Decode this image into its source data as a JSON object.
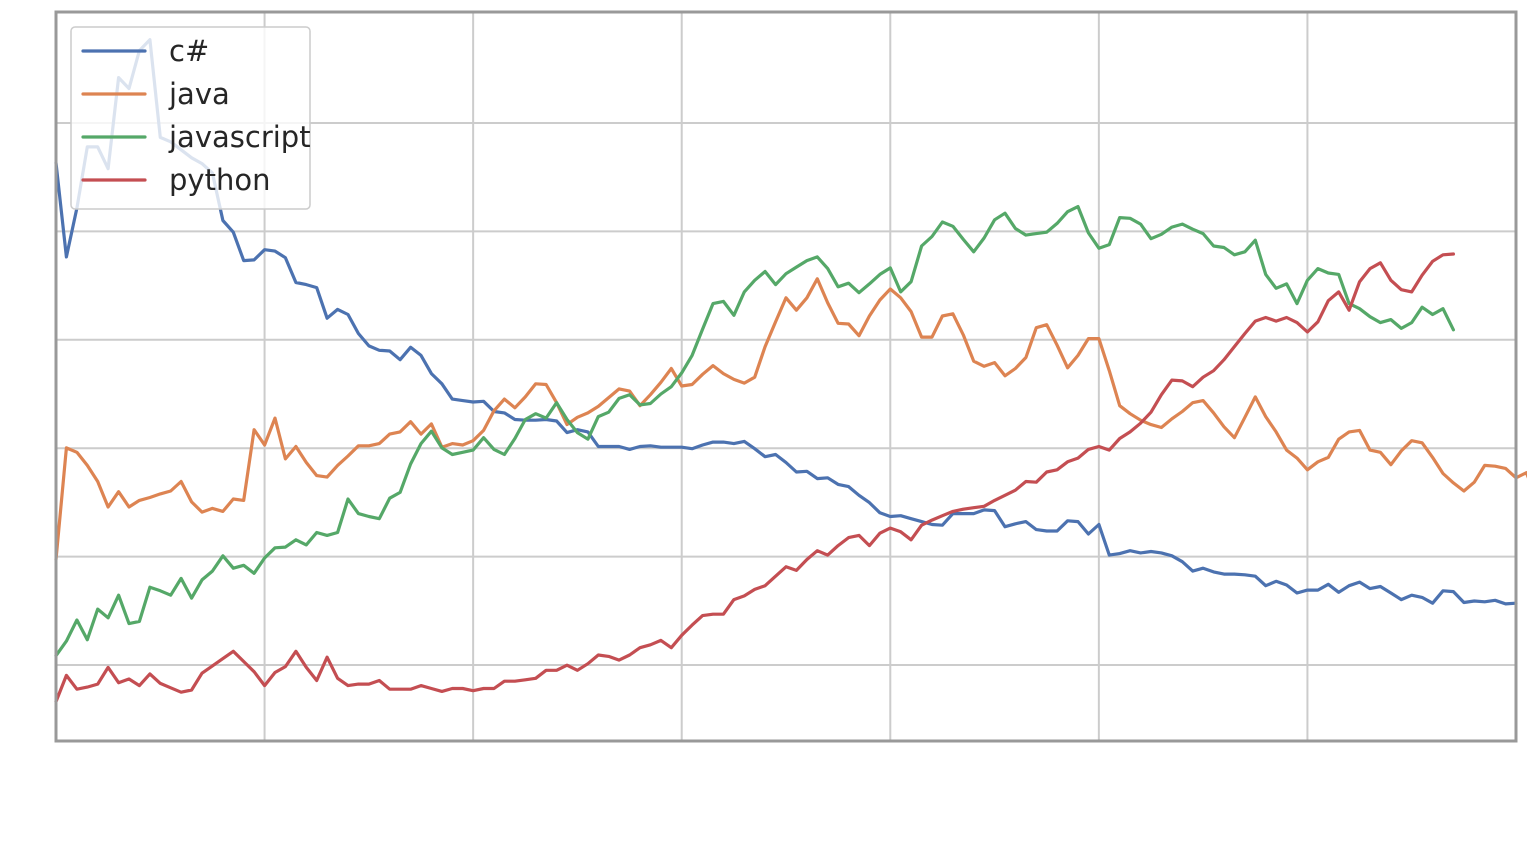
{
  "chart_data": {
    "type": "line",
    "title": "",
    "xlabel": "",
    "ylabel": "",
    "x_ticks_count": 7,
    "y_ticks_count": 6,
    "grid": true,
    "legend_position": "top-left",
    "ylim": [
      0,
      100
    ],
    "series": [
      {
        "name": "c#",
        "color": "#4c72b0",
        "values": [
          79.3,
          66.4,
          73.1,
          81.5,
          81.5,
          78.5,
          91.0,
          89.5,
          94.7,
          96.2,
          82.8,
          82.2,
          81.1,
          80.0,
          79.2,
          77.9,
          71.4,
          69.8,
          65.9,
          66.0,
          67.4,
          67.2,
          66.3,
          62.9,
          62.6,
          62.2,
          58.0,
          59.2,
          58.5,
          55.9,
          54.2,
          53.6,
          53.5,
          52.3,
          54.0,
          52.9,
          50.4,
          49.0,
          46.9,
          46.7,
          46.5,
          46.6,
          45.2,
          45.0,
          44.1,
          44.0,
          44.0,
          44.1,
          43.9,
          42.3,
          42.7,
          42.4,
          40.4,
          40.4,
          40.4,
          40.0,
          40.4,
          40.5,
          40.3,
          40.3,
          40.3,
          40.1,
          40.6,
          41.0,
          41.0,
          40.8,
          41.1,
          40.1,
          39.0,
          39.3,
          38.2,
          36.9,
          37.0,
          36.0,
          36.1,
          35.2,
          34.9,
          33.7,
          32.7,
          31.3,
          30.8,
          30.9,
          30.5,
          30.1,
          29.7,
          29.6,
          31.2,
          31.2,
          31.2,
          31.7,
          31.6,
          29.4,
          29.8,
          30.1,
          29.0,
          28.8,
          28.8,
          30.2,
          30.1,
          28.4,
          29.7,
          25.5,
          25.7,
          26.1,
          25.8,
          26.0,
          25.8,
          25.4,
          24.6,
          23.3,
          23.7,
          23.2,
          22.9,
          22.9,
          22.8,
          22.6,
          21.3,
          21.9,
          21.4,
          20.3,
          20.7,
          20.7,
          21.5,
          20.4,
          21.3,
          21.8,
          20.9,
          21.2,
          20.3,
          19.4,
          20.0,
          19.7,
          18.9,
          20.6,
          20.5,
          19.0,
          19.2,
          19.1,
          19.3,
          18.8,
          18.9
        ]
      },
      {
        "name": "java",
        "color": "#dd8452",
        "values": [
          24.9,
          40.2,
          39.6,
          37.8,
          35.6,
          32.1,
          34.2,
          32.1,
          33.0,
          33.4,
          33.9,
          34.3,
          35.6,
          32.8,
          31.4,
          31.9,
          31.5,
          33.2,
          33.0,
          42.7,
          40.6,
          44.3,
          38.7,
          40.4,
          38.2,
          36.4,
          36.2,
          37.8,
          39.1,
          40.5,
          40.5,
          40.8,
          42.1,
          42.4,
          43.8,
          42.1,
          43.5,
          40.3,
          40.8,
          40.6,
          41.2,
          42.6,
          45.3,
          46.9,
          45.7,
          47.2,
          49.0,
          48.9,
          46.4,
          43.4,
          44.4,
          45.0,
          45.9,
          47.1,
          48.3,
          48.0,
          46.0,
          47.5,
          49.2,
          51.1,
          48.7,
          48.9,
          50.3,
          51.5,
          50.4,
          49.6,
          49.1,
          49.9,
          54.1,
          57.5,
          60.8,
          59.1,
          60.8,
          63.4,
          60.1,
          57.3,
          57.2,
          55.6,
          58.3,
          60.5,
          62.0,
          60.8,
          58.9,
          55.4,
          55.4,
          58.3,
          58.6,
          55.7,
          52.1,
          51.4,
          51.9,
          50.1,
          51.1,
          52.6,
          56.7,
          57.1,
          54.3,
          51.2,
          52.9,
          55.2,
          55.2,
          50.8,
          46.0,
          44.9,
          44.0,
          43.4,
          43.0,
          44.2,
          45.2,
          46.4,
          46.7,
          45.0,
          43.1,
          41.6,
          44.4,
          47.2,
          44.5,
          42.4,
          39.9,
          38.8,
          37.2,
          38.3,
          38.9,
          41.4,
          42.4,
          42.6,
          39.9,
          39.6,
          37.9,
          39.8,
          41.2,
          40.9,
          38.9,
          36.7,
          35.4,
          34.3,
          35.5,
          37.8,
          37.7,
          37.4,
          36.1,
          36.8,
          33.1,
          33.2,
          31.5,
          33.1,
          33.1
        ]
      },
      {
        "name": "javascript",
        "color": "#55a868",
        "values": [
          11.7,
          13.7,
          16.6,
          13.9,
          18.1,
          16.9,
          20.0,
          16.1,
          16.4,
          21.1,
          20.6,
          20.0,
          22.3,
          19.6,
          22.1,
          23.3,
          25.4,
          23.7,
          24.1,
          23.0,
          25.1,
          26.5,
          26.6,
          27.6,
          26.9,
          28.6,
          28.2,
          28.6,
          33.2,
          31.2,
          30.8,
          30.5,
          33.3,
          34.1,
          38.0,
          40.8,
          42.5,
          40.2,
          39.3,
          39.6,
          39.9,
          41.6,
          40.0,
          39.3,
          41.5,
          44.1,
          44.9,
          44.3,
          46.4,
          44.1,
          42.3,
          41.4,
          44.5,
          45.1,
          47.0,
          47.5,
          46.1,
          46.3,
          47.6,
          48.6,
          50.5,
          52.9,
          56.5,
          60.0,
          60.3,
          58.4,
          61.6,
          63.2,
          64.4,
          62.6,
          64.1,
          65.0,
          65.9,
          66.4,
          64.8,
          62.3,
          62.8,
          61.5,
          62.7,
          64.0,
          64.9,
          61.6,
          63.0,
          67.9,
          69.2,
          71.2,
          70.6,
          68.8,
          67.1,
          69.0,
          71.5,
          72.4,
          70.3,
          69.4,
          69.6,
          69.8,
          71.0,
          72.6,
          73.3,
          69.7,
          67.6,
          68.1,
          71.8,
          71.7,
          70.9,
          68.9,
          69.5,
          70.5,
          70.9,
          70.2,
          69.6,
          67.9,
          67.7,
          66.7,
          67.1,
          68.7,
          64.0,
          62.1,
          62.7,
          60.0,
          63.2,
          64.8,
          64.2,
          64.0,
          60.0,
          59.3,
          58.2,
          57.4,
          57.8,
          56.6,
          57.4,
          59.5,
          58.5,
          59.3,
          56.4
        ]
      },
      {
        "name": "python",
        "color": "#c44e52",
        "values": [
          5.4,
          9.0,
          7.1,
          7.4,
          7.8,
          10.1,
          8.0,
          8.5,
          7.6,
          9.2,
          7.9,
          7.3,
          6.7,
          7.0,
          9.3,
          10.3,
          11.3,
          12.3,
          10.9,
          9.5,
          7.6,
          9.4,
          10.2,
          12.3,
          10.1,
          8.3,
          11.5,
          8.6,
          7.6,
          7.8,
          7.8,
          8.3,
          7.1,
          7.1,
          7.1,
          7.6,
          7.2,
          6.8,
          7.2,
          7.2,
          6.9,
          7.2,
          7.2,
          8.2,
          8.2,
          8.4,
          8.6,
          9.7,
          9.7,
          10.4,
          9.7,
          10.6,
          11.8,
          11.6,
          11.1,
          11.8,
          12.8,
          13.2,
          13.8,
          12.8,
          14.5,
          15.9,
          17.2,
          17.4,
          17.4,
          19.4,
          19.9,
          20.8,
          21.3,
          22.6,
          23.9,
          23.4,
          24.9,
          26.1,
          25.5,
          26.8,
          27.9,
          28.2,
          26.8,
          28.5,
          29.2,
          28.7,
          27.6,
          29.6,
          30.3,
          30.9,
          31.5,
          31.8,
          32.0,
          32.2,
          33.0,
          33.7,
          34.4,
          35.6,
          35.5,
          36.9,
          37.2,
          38.3,
          38.8,
          40.0,
          40.4,
          39.9,
          41.5,
          42.4,
          43.6,
          45.1,
          47.5,
          49.5,
          49.4,
          48.6,
          49.9,
          50.8,
          52.3,
          54.1,
          55.9,
          57.6,
          58.1,
          57.6,
          58.1,
          57.4,
          56.1,
          57.5,
          60.4,
          61.6,
          59.1,
          63.0,
          64.8,
          65.6,
          63.2,
          61.9,
          61.6,
          63.9,
          65.8,
          66.7,
          66.8
        ]
      }
    ]
  }
}
